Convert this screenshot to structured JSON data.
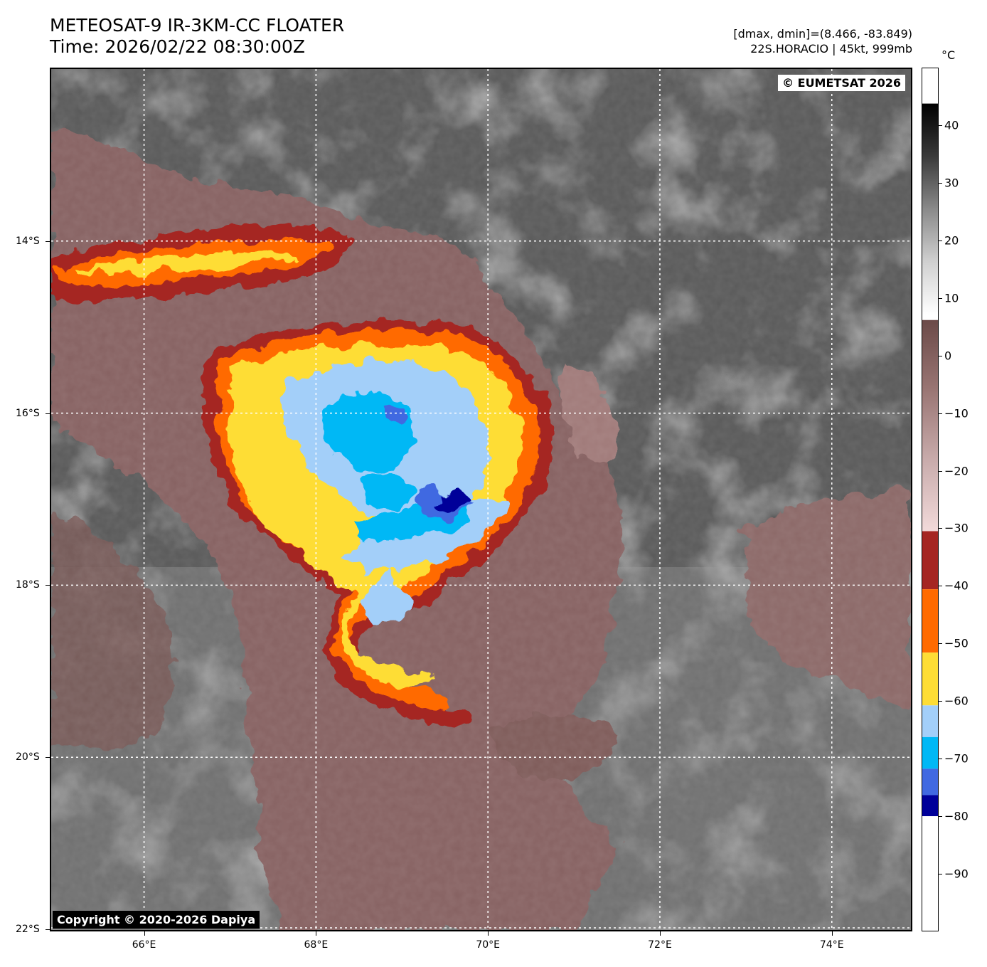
{
  "header": {
    "title_line1": "METEOSAT-9 IR-3KM-CC FLOATER",
    "title_line2": "Time: 2026/02/22 08:30:00Z",
    "info_line1": "[dmax, dmin]=(8.466, -83.849)",
    "info_line2": "22S.HORACIO | 45kt, 999mb"
  },
  "map": {
    "lon_range": [
      64.92,
      74.92
    ],
    "lat_range": [
      -22.0,
      -12.0
    ],
    "lat_labels": [
      "14°S",
      "16°S",
      "18°S",
      "20°S",
      "22°S"
    ],
    "lat_values": [
      -14,
      -16,
      -18,
      -20,
      -22
    ],
    "lon_labels": [
      "66°E",
      "68°E",
      "70°E",
      "72°E",
      "74°E"
    ],
    "lon_values": [
      66,
      68,
      70,
      72,
      74
    ],
    "gridlines": true,
    "badge_eumetsat": "© EUMETSAT 2026",
    "badge_copyright": "Copyright © 2020-2026 Dapiya",
    "background_color": "#555555",
    "storm_center": {
      "lon": 69.6,
      "lat": -17.1
    }
  },
  "colorbar": {
    "unit": "°C",
    "range": [
      -100,
      50
    ],
    "ticks": [
      {
        "value": 40,
        "label": "40"
      },
      {
        "value": 30,
        "label": "30"
      },
      {
        "value": 20,
        "label": "20"
      },
      {
        "value": 10,
        "label": "10"
      },
      {
        "value": 0,
        "label": "0"
      },
      {
        "value": -10,
        "label": "−10"
      },
      {
        "value": -20,
        "label": "−20"
      },
      {
        "value": -30,
        "label": "−30"
      },
      {
        "value": -40,
        "label": "−40"
      },
      {
        "value": -50,
        "label": "−50"
      },
      {
        "value": -60,
        "label": "−60"
      },
      {
        "value": -70,
        "label": "−70"
      },
      {
        "value": -80,
        "label": "−80"
      },
      {
        "value": -90,
        "label": "−90"
      }
    ],
    "segments": [
      {
        "from": 50,
        "to": 10,
        "type": "gradient",
        "colors": [
          "#000000",
          "#3a3a3a",
          "#8a8a8a",
          "#d0d0d0",
          "#ffffff"
        ]
      },
      {
        "from": 9,
        "to": -31,
        "type": "gradient",
        "colors": [
          "#6b4a48",
          "#9a7674",
          "#c9acac",
          "#f2dada"
        ]
      },
      {
        "from": -31,
        "to": -42,
        "type": "solid",
        "colors": [
          "#a52622"
        ]
      },
      {
        "from": -42,
        "to": -54,
        "type": "solid",
        "colors": [
          "#ff6a00"
        ]
      },
      {
        "from": -54,
        "to": -64,
        "type": "solid",
        "colors": [
          "#fedd35"
        ]
      },
      {
        "from": -64,
        "to": -70,
        "type": "solid",
        "colors": [
          "#a3cff9"
        ]
      },
      {
        "from": -70,
        "to": -76,
        "type": "solid",
        "colors": [
          "#00b8f5"
        ]
      },
      {
        "from": -76,
        "to": -81,
        "type": "solid",
        "colors": [
          "#4169e1"
        ]
      },
      {
        "from": -81,
        "to": -85,
        "type": "solid",
        "colors": [
          "#000099"
        ]
      },
      {
        "from": -85,
        "to": -100,
        "type": "solid",
        "colors": [
          "#ffffff"
        ]
      }
    ]
  }
}
